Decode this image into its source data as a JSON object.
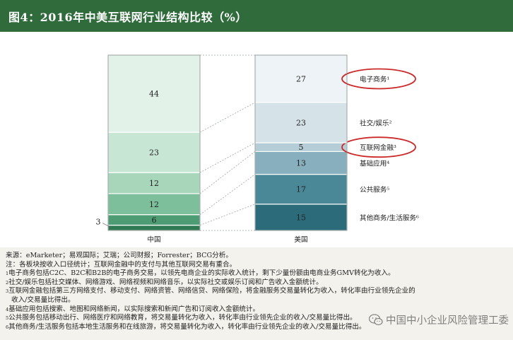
{
  "header": {
    "title": "图4：2016年中美互联网行业结构比较（%）"
  },
  "chart_data": {
    "type": "stacked-bar",
    "unit": "%",
    "categories": [
      "中国",
      "美国"
    ],
    "segments": {
      "中国": [
        {
          "label": "",
          "value": 3,
          "color": "#2f7a52"
        },
        {
          "label": "",
          "value": 6,
          "color": "#4e9c73"
        },
        {
          "label": "",
          "value": 12,
          "color": "#7cbf9a"
        },
        {
          "label": "",
          "value": 12,
          "color": "#a7d6bb"
        },
        {
          "label": "",
          "value": 23,
          "color": "#c8e6d4"
        },
        {
          "label": "",
          "value": 44,
          "color": "#e3f2e8"
        }
      ],
      "美国": [
        {
          "label": "其他商务/生活服务⁶",
          "value": 15,
          "color": "#2c6b7a"
        },
        {
          "label": "公共服务⁵",
          "value": 17,
          "color": "#4a8898"
        },
        {
          "label": "基础应用⁴",
          "value": 13,
          "color": "#88afbd"
        },
        {
          "label": "互联网金融³",
          "value": 5,
          "color": "#b4cdd6"
        },
        {
          "label": "社交/娱乐²",
          "value": 23,
          "color": "#d5e2e8"
        },
        {
          "label": "电子商务¹",
          "value": 27,
          "color": "#edf3f6"
        }
      ]
    },
    "legend": [
      "电子商务¹",
      "社交/娱乐²",
      "互联网金融³",
      "基础应用⁴",
      "公共服务⁵",
      "其他商务/生活服务⁶"
    ],
    "highlighted": [
      "电子商务¹",
      "互联网金融³"
    ],
    "highlight_color": "#cc2a2a"
  },
  "notes": {
    "source": "来源：eMarketer；易观国际；艾瑞；公司财报；Forrester；BCG分析。",
    "note": "注：各板块按收入口径统计；互联网金融中的支付与其他互联网交易有重合。",
    "items": [
      "电子商务包括C2C、B2C和B2B的电子商务交易，以领先电商企业的实际收入统计，剩下少量份额由电商业务GMV转化为收入。",
      "社交/娱乐包括社交媒体、网络游戏、网络视频和网络音乐，以实际社交或娱乐订阅和广告收入金额统计。",
      "互联网金融包括第三方网络支付、移动支付、网络资管、网络信贷、网络保险，将金融服务交易量转化为收入，转化率由行业领先企业的",
      "收入/交易量比得出。",
      "基础应用包括搜索、地图和网络新闻，以实际搜索和新闻广告和订阅收入金额统计。",
      "公共服务包括移动出行、网络医疗和网络教育，将交易量转化为收入，转化率由行业领先企业的收入/交易量比得出。",
      "其他商务/生活服务包括本地生活服务和在线旅游，将交易量转化为收入，转化率由行业领先企业的收入/交易量比得出。"
    ],
    "markers": [
      "1",
      "2",
      "3",
      "",
      "4",
      "5",
      "6"
    ]
  },
  "watermark": {
    "text": "中国中小企业风险管理工委"
  }
}
